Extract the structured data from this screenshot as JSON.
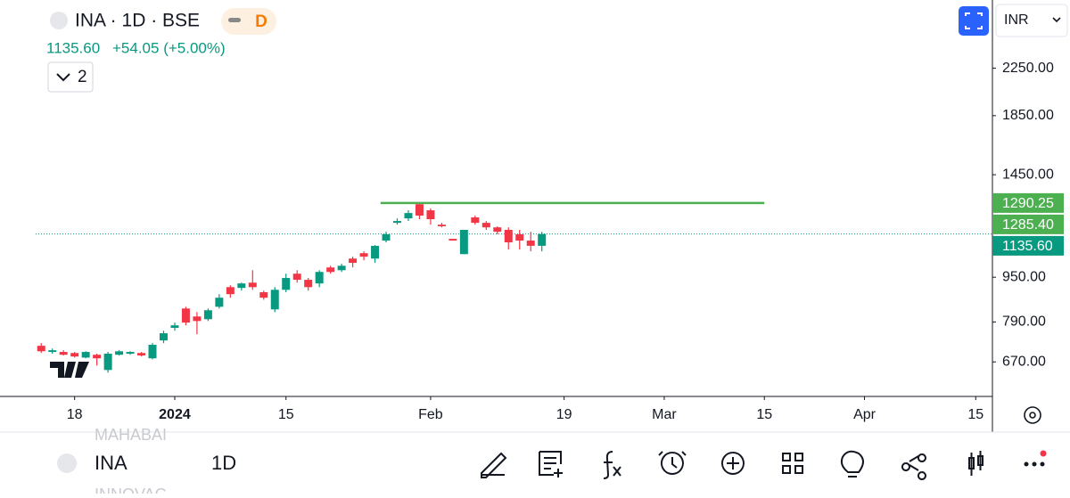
{
  "header": {
    "symbol": "INA · 1D · BSE",
    "badge": "D",
    "price": "1135.60",
    "change": "+54.05 (+5.00%)",
    "indicators": "2",
    "currency": "INR"
  },
  "toolbar": {
    "symbol": "INA",
    "interval": "1D",
    "prev_symbol": "MAHABAI",
    "next_symbol": "INNOVAC"
  },
  "chart_data": {
    "type": "candlestick",
    "log_scale": true,
    "up_color": "#089981",
    "down_color": "#f23645",
    "open": [
      716,
      698,
      698,
      695,
      682,
      690,
      648,
      690,
      693,
      695,
      680,
      732,
      771,
      835,
      808,
      799,
      841,
      912,
      909,
      929,
      893,
      832,
      902,
      964,
      940,
      926,
      989,
      978,
      1026,
      1049,
      1026,
      1105,
      1189,
      1211,
      1284,
      1252,
      1180,
      1113,
      1045,
      1216,
      1189,
      1167,
      1155,
      1134,
      1105,
      1081.55
    ],
    "high": [
      724,
      708,
      703,
      698,
      700,
      693,
      698,
      703,
      700,
      698,
      724,
      762,
      788,
      841,
      823,
      835,
      886,
      919,
      929,
      978,
      899,
      912,
      964,
      978,
      947,
      978,
      996,
      1004,
      1034,
      1057,
      1085,
      1146,
      1211,
      1252,
      1294,
      1262,
      1189,
      1113,
      1155,
      1225,
      1198,
      1172,
      1167,
      1155,
      1146,
      1146
    ],
    "low": [
      695,
      693,
      688,
      682,
      680,
      660,
      641,
      688,
      690,
      685,
      677,
      724,
      762,
      779,
      751,
      793,
      835,
      873,
      899,
      902,
      866,
      823,
      893,
      929,
      899,
      912,
      964,
      971,
      989,
      1019,
      1008,
      1097,
      1180,
      1198,
      1207,
      1180,
      1167,
      1105,
      1045,
      1180,
      1155,
      1134,
      1065,
      1065,
      1057,
      1057
    ],
    "close": [
      700,
      703,
      690,
      685,
      698,
      680,
      693,
      700,
      698,
      688,
      719,
      754,
      779,
      788,
      793,
      829,
      873,
      886,
      926,
      912,
      873,
      902,
      947,
      940,
      912,
      971,
      971,
      996,
      1008,
      1034,
      1081,
      1134,
      1198,
      1238,
      1225,
      1207,
      1172,
      1105,
      1155,
      1189,
      1167,
      1146,
      1097,
      1105,
      1081.55,
      1135.6
    ],
    "xlim": [
      -0.5,
      85.5
    ],
    "xticks": [
      {
        "value": 3,
        "label": "18"
      },
      {
        "value": 12,
        "label": "2024"
      },
      {
        "value": 22,
        "label": "15"
      },
      {
        "value": 35,
        "label": "Feb"
      },
      {
        "value": 47,
        "label": "19"
      },
      {
        "value": 56,
        "label": "Mar"
      },
      {
        "value": 65,
        "label": "15"
      },
      {
        "value": 74,
        "label": "Apr"
      },
      {
        "value": 84,
        "label": "15"
      }
    ],
    "ylim": [
      581,
      2981
    ],
    "yticks": [
      {
        "value": 670,
        "label": "670.00"
      },
      {
        "value": 790,
        "label": "790.00"
      },
      {
        "value": 950,
        "label": "950.00"
      },
      {
        "value": 1450,
        "label": "1450.00"
      },
      {
        "value": 1850,
        "label": "1850.00"
      },
      {
        "value": 2250,
        "label": "2250.00"
      }
    ],
    "hline": {
      "value": 1290.25,
      "x": [
        30.5,
        65
      ],
      "color": "#4caf50"
    },
    "price_labels": [
      {
        "value": 1290.25,
        "label": "1290.25",
        "color": "#4caf50"
      },
      {
        "value": 1285.4,
        "label": "1285.40",
        "color": "#4caf50"
      },
      {
        "value": 1135.6,
        "label": "1135.60",
        "color": "#089981"
      }
    ]
  }
}
